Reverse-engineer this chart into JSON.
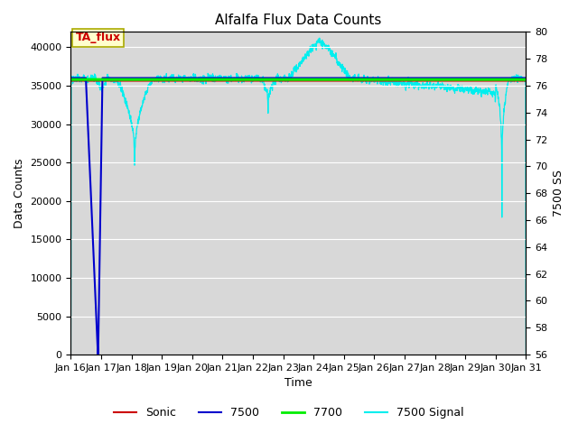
{
  "title": "Alfalfa Flux Data Counts",
  "xlabel": "Time",
  "ylabel_left": "Data Counts",
  "ylabel_right": "7500 SS",
  "xlim": [
    0,
    15
  ],
  "ylim_left": [
    0,
    42000
  ],
  "ylim_right": [
    56,
    80
  ],
  "yticks_left": [
    0,
    5000,
    10000,
    15000,
    20000,
    25000,
    30000,
    35000,
    40000
  ],
  "yticks_right": [
    56,
    58,
    60,
    62,
    64,
    66,
    68,
    70,
    72,
    74,
    76,
    78,
    80
  ],
  "xtick_labels": [
    "Jan 16",
    "Jan 17",
    "Jan 18",
    "Jan 19",
    "Jan 20",
    "Jan 21",
    "Jan 22",
    "Jan 23",
    "Jan 24",
    "Jan 25",
    "Jan 26",
    "Jan 27",
    "Jan 28",
    "Jan 29",
    "Jan 30",
    "Jan 31"
  ],
  "annotation_text": "TA_flux",
  "annotation_color": "#cc0000",
  "annotation_bg": "#ffffcc",
  "annotation_border": "#aaaa00",
  "background_color": "#d8d8d8",
  "fig_bg": "#ffffff",
  "colors": {
    "sonic": "#cc0000",
    "7500": "#0000cc",
    "7700": "#00ee00",
    "7500_signal": "#00eeee"
  },
  "legend_labels": [
    "Sonic",
    "7500",
    "7700",
    "7500 Signal"
  ],
  "sonic_level": 35600,
  "level_7700": 35800,
  "level_7500_flat": 36000
}
